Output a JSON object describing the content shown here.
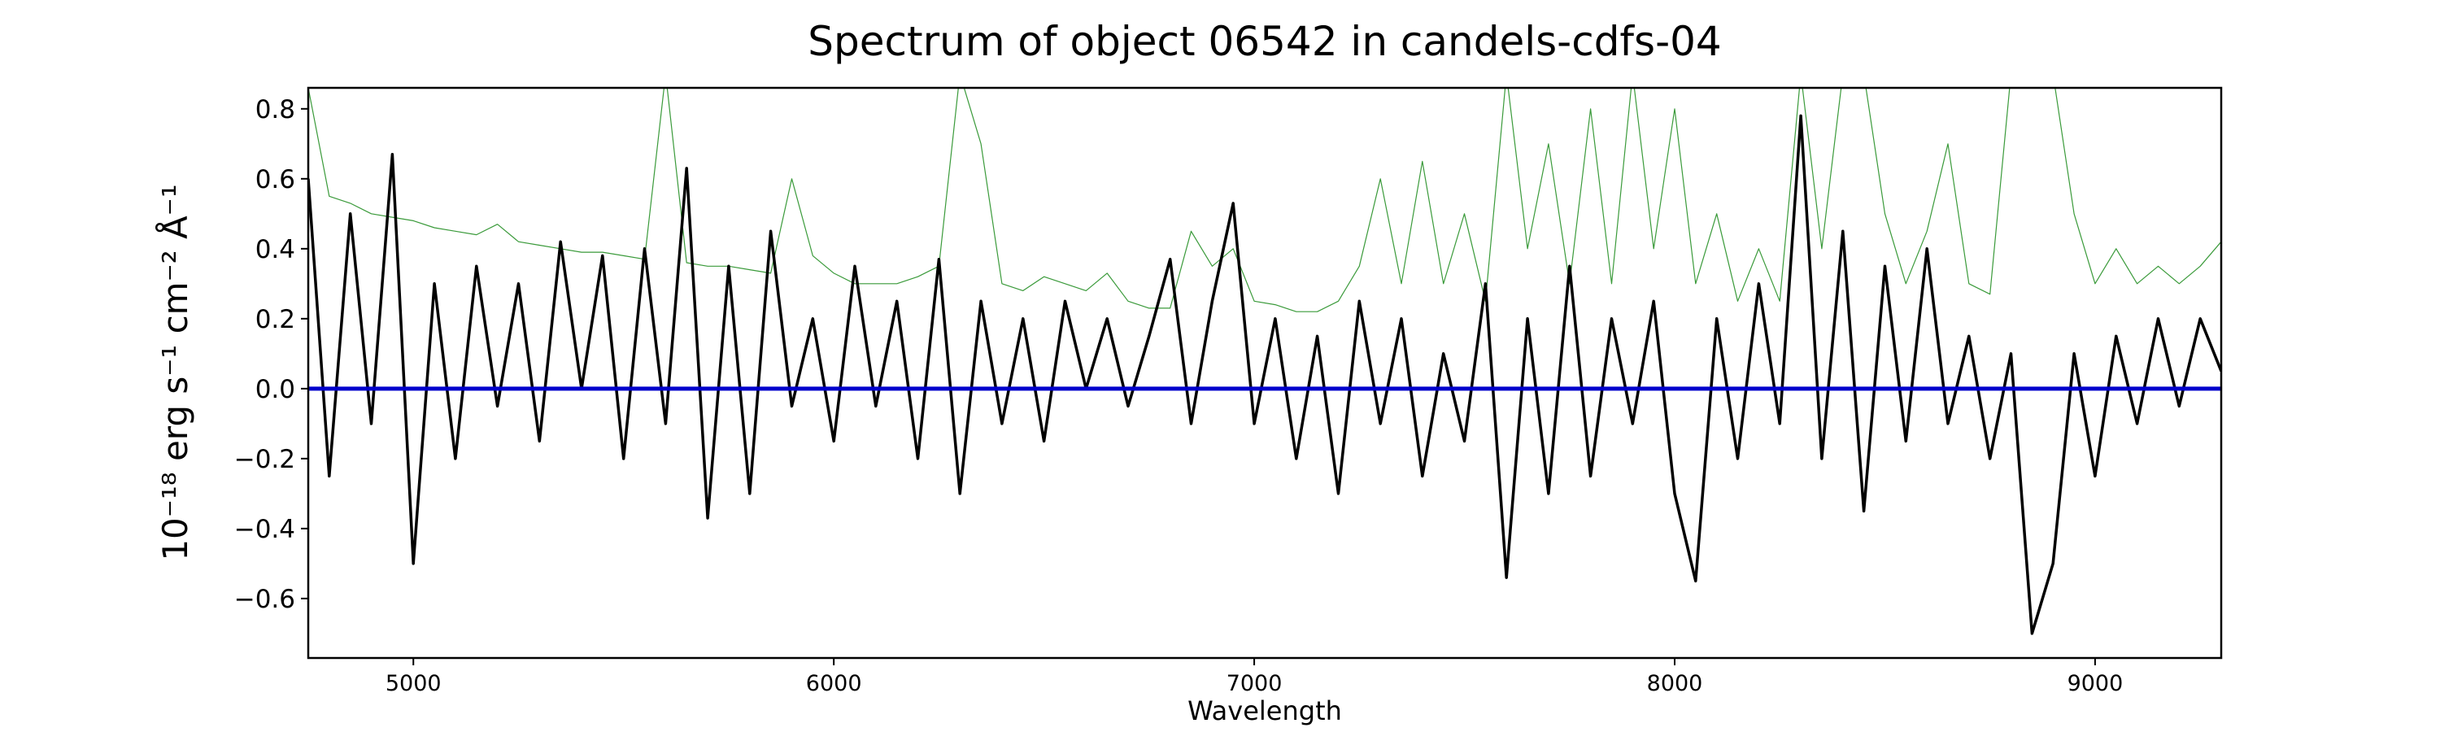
{
  "chart_data": {
    "type": "line",
    "title": "Spectrum of object 06542 in candels-cdfs-04",
    "xlabel": "Wavelength",
    "ylabel": "10⁻¹⁸ erg s⁻¹ cm⁻² Å⁻¹",
    "x": [
      4750,
      4800,
      4850,
      4900,
      4950,
      5000,
      5050,
      5100,
      5150,
      5200,
      5250,
      5300,
      5350,
      5400,
      5450,
      5500,
      5550,
      5600,
      5650,
      5700,
      5750,
      5800,
      5850,
      5900,
      5950,
      6000,
      6050,
      6100,
      6150,
      6200,
      6250,
      6300,
      6350,
      6400,
      6450,
      6500,
      6550,
      6600,
      6650,
      6700,
      6750,
      6800,
      6850,
      6900,
      6950,
      7000,
      7050,
      7100,
      7150,
      7200,
      7250,
      7300,
      7350,
      7400,
      7450,
      7500,
      7550,
      7600,
      7650,
      7700,
      7750,
      7800,
      7850,
      7900,
      7950,
      8000,
      8050,
      8100,
      8150,
      8200,
      8250,
      8300,
      8350,
      8400,
      8450,
      8500,
      8550,
      8600,
      8650,
      8700,
      8750,
      8800,
      8850,
      8900,
      8950,
      9000,
      9050,
      9100,
      9150,
      9200,
      9250,
      9300
    ],
    "series": [
      {
        "color": "#3a9a3a",
        "width": 1.2,
        "values": [
          0.86,
          0.55,
          0.53,
          0.5,
          0.49,
          0.48,
          0.46,
          0.45,
          0.44,
          0.47,
          0.42,
          0.41,
          0.4,
          0.39,
          0.39,
          0.38,
          0.37,
          0.9,
          0.36,
          0.35,
          0.35,
          0.34,
          0.33,
          0.6,
          0.38,
          0.33,
          0.3,
          0.3,
          0.3,
          0.32,
          0.35,
          0.9,
          0.7,
          0.3,
          0.28,
          0.32,
          0.3,
          0.28,
          0.33,
          0.25,
          0.23,
          0.23,
          0.45,
          0.35,
          0.4,
          0.25,
          0.24,
          0.22,
          0.22,
          0.25,
          0.35,
          0.6,
          0.3,
          0.65,
          0.3,
          0.5,
          0.25,
          0.9,
          0.4,
          0.7,
          0.3,
          0.8,
          0.3,
          0.9,
          0.4,
          0.8,
          0.3,
          0.5,
          0.25,
          0.4,
          0.25,
          0.9,
          0.4,
          0.9,
          0.9,
          0.5,
          0.3,
          0.45,
          0.7,
          0.3,
          0.27,
          0.9,
          0.9,
          0.9,
          0.5,
          0.3,
          0.4,
          0.3,
          0.35,
          0.3,
          0.35,
          0.42
        ]
      },
      {
        "color": "#000000",
        "width": 3.5,
        "values": [
          0.6,
          -0.25,
          0.5,
          -0.1,
          0.67,
          -0.5,
          0.3,
          -0.2,
          0.35,
          -0.05,
          0.3,
          -0.15,
          0.42,
          0.0,
          0.38,
          -0.2,
          0.4,
          -0.1,
          0.63,
          -0.37,
          0.35,
          -0.3,
          0.45,
          -0.05,
          0.2,
          -0.15,
          0.35,
          -0.05,
          0.25,
          -0.2,
          0.37,
          -0.3,
          0.25,
          -0.1,
          0.2,
          -0.15,
          0.25,
          0.0,
          0.2,
          -0.05,
          0.15,
          0.37,
          -0.1,
          0.25,
          0.53,
          -0.1,
          0.2,
          -0.2,
          0.15,
          -0.3,
          0.25,
          -0.1,
          0.2,
          -0.25,
          0.1,
          -0.15,
          0.3,
          -0.54,
          0.2,
          -0.3,
          0.35,
          -0.25,
          0.2,
          -0.1,
          0.25,
          -0.3,
          -0.55,
          0.2,
          -0.2,
          0.3,
          -0.1,
          0.78,
          -0.2,
          0.45,
          -0.35,
          0.35,
          -0.15,
          0.4,
          -0.1,
          0.15,
          -0.2,
          0.1,
          -0.7,
          -0.5,
          0.1,
          -0.25,
          0.15,
          -0.1,
          0.2,
          -0.05,
          0.2,
          0.05
        ]
      },
      {
        "color": "#0000cc",
        "width": 5,
        "values": [
          0,
          0,
          0,
          0,
          0,
          0,
          0,
          0,
          0,
          0,
          0,
          0,
          0,
          0,
          0,
          0,
          0,
          0,
          0,
          0,
          0,
          0,
          0,
          0,
          0,
          0,
          0,
          0,
          0,
          0,
          0,
          0,
          0,
          0,
          0,
          0,
          0,
          0,
          0,
          0,
          0,
          0,
          0,
          0,
          0,
          0,
          0,
          0,
          0,
          0,
          0,
          0,
          0,
          0,
          0,
          0,
          0,
          0,
          0,
          0,
          0,
          0,
          0,
          0,
          0,
          0,
          0,
          0,
          0,
          0,
          0,
          0,
          0,
          0,
          0,
          0,
          0,
          0,
          0,
          0,
          0,
          0,
          0,
          0,
          0,
          0,
          0,
          0,
          0,
          0,
          0,
          0
        ]
      }
    ],
    "xlim": [
      4750,
      9300
    ],
    "ylim": [
      -0.77,
      0.86
    ],
    "xticks": [
      5000,
      6000,
      7000,
      8000,
      9000
    ],
    "yticks": [
      {
        "value": -0.6,
        "label": "−0.6"
      },
      {
        "value": -0.4,
        "label": "−0.4"
      },
      {
        "value": -0.2,
        "label": "−0.2"
      },
      {
        "value": 0,
        "label": "0.0"
      },
      {
        "value": 0.2,
        "label": "0.2"
      },
      {
        "value": 0.4,
        "label": "0.4"
      },
      {
        "value": 0.6,
        "label": "0.6"
      },
      {
        "value": 0.8,
        "label": "0.8"
      }
    ],
    "grid": false
  }
}
